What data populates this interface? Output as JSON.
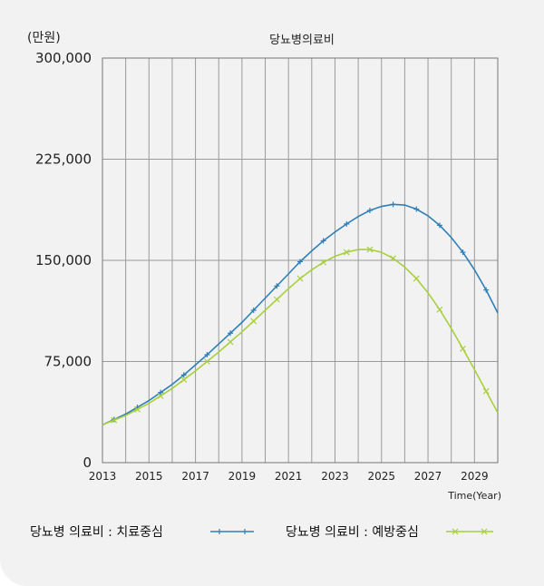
{
  "chart_data": {
    "type": "line",
    "title": "당뇨병의료비",
    "ylabel": "(만원)",
    "xlabel": "Time(Year)",
    "xlim": [
      2013,
      2030
    ],
    "ylim": [
      0,
      300000
    ],
    "xticks": [
      "2013",
      "2015",
      "2017",
      "2019",
      "2021",
      "2023",
      "2025",
      "2027",
      "2029"
    ],
    "yticks": [
      "0",
      "75,000",
      "150,000",
      "225,000",
      "300,000"
    ],
    "grid": true,
    "legend_position": "bottom",
    "series": [
      {
        "name": "당뇨병 의료비 : 치료중심",
        "color": "#2e7fb8",
        "x": [
          2013,
          2013.5,
          2014,
          2014.5,
          2015,
          2015.5,
          2016,
          2016.5,
          2017,
          2017.5,
          2018,
          2018.5,
          2019,
          2019.5,
          2020,
          2020.5,
          2021,
          2021.5,
          2022,
          2022.5,
          2023,
          2023.5,
          2024,
          2024.5,
          2025,
          2025.5,
          2026,
          2026.5,
          2027,
          2027.5,
          2028,
          2028.5,
          2029,
          2029.5,
          2030
        ],
        "y": [
          28000,
          32000,
          36000,
          41000,
          46000,
          52000,
          58000,
          65000,
          72500,
          80000,
          88000,
          96000,
          104000,
          113000,
          122000,
          131000,
          140000,
          149000,
          157000,
          164500,
          171000,
          177000,
          182500,
          187000,
          190000,
          191500,
          191000,
          188000,
          183000,
          176000,
          167000,
          156000,
          143000,
          128000,
          111000
        ]
      },
      {
        "name": "당뇨병 의료비 : 예방중심",
        "color": "#a8cf3c",
        "x": [
          2013,
          2013.5,
          2014,
          2014.5,
          2015,
          2015.5,
          2016,
          2016.5,
          2017,
          2017.5,
          2018,
          2018.5,
          2019,
          2019.5,
          2020,
          2020.5,
          2021,
          2021.5,
          2022,
          2022.5,
          2023,
          2023.5,
          2024,
          2024.5,
          2025,
          2025.5,
          2026,
          2026.5,
          2027,
          2027.5,
          2028,
          2028.5,
          2029,
          2029.5,
          2030
        ],
        "y": [
          28000,
          31500,
          35000,
          39500,
          44000,
          49500,
          55000,
          61500,
          68000,
          75000,
          82000,
          89500,
          97000,
          105000,
          113000,
          121000,
          129000,
          136500,
          143000,
          148500,
          153000,
          156000,
          158000,
          158000,
          156000,
          151500,
          145000,
          136500,
          126000,
          113500,
          99500,
          84500,
          69000,
          53000,
          37000
        ]
      }
    ]
  }
}
